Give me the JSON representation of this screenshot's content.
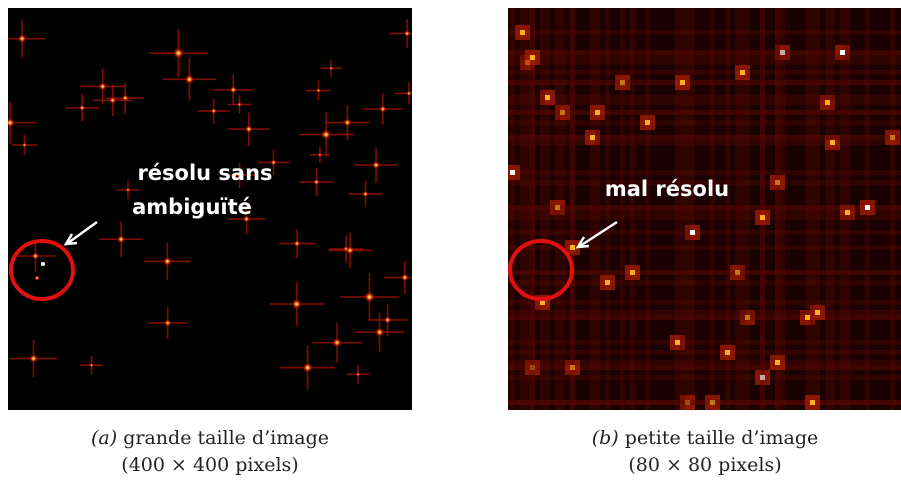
{
  "panels": [
    {
      "annotation": [
        "résolu sans",
        "ambiguïté"
      ],
      "label": "(a)",
      "caption": [
        "grande taille d’image",
        "(400 × 400 pixels)"
      ]
    },
    {
      "annotation": [
        "mal résolu"
      ],
      "label": "(b)",
      "caption": [
        "petite taille d’image",
        "(80 × 80 pixels)"
      ]
    }
  ]
}
